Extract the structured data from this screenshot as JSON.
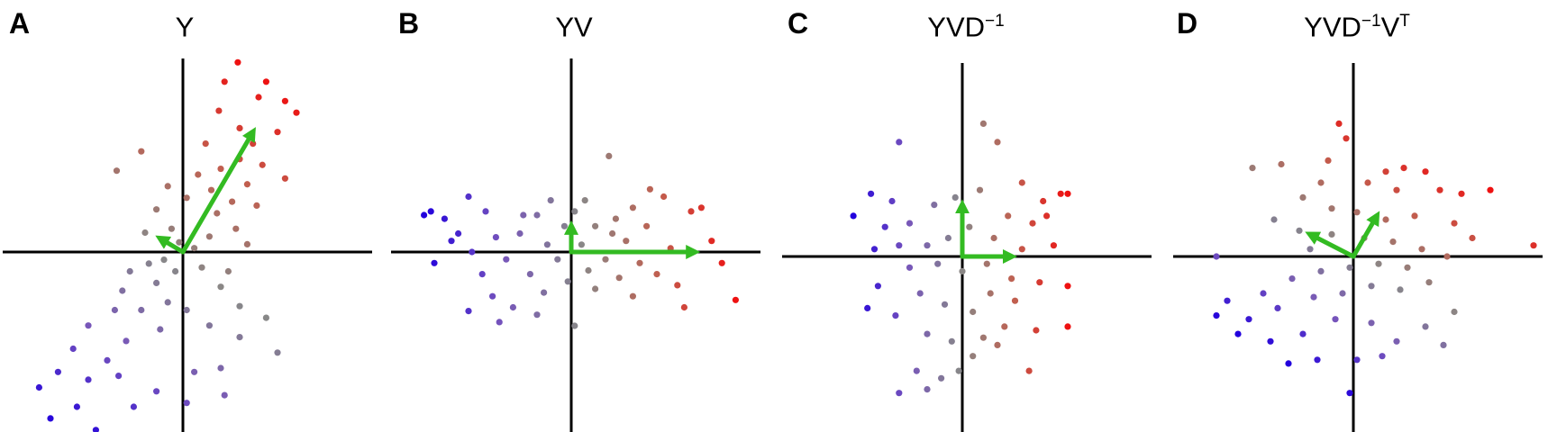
{
  "figure": {
    "panels": [
      {
        "letter": "A",
        "title": {
          "base": "Y",
          "sup1": "",
          "mid": "",
          "sup2": ""
        }
      },
      {
        "letter": "B",
        "title": {
          "base": "YV",
          "sup1": "",
          "mid": "",
          "sup2": ""
        }
      },
      {
        "letter": "C",
        "title": {
          "base": "YVD",
          "sup1": "−1",
          "mid": "",
          "sup2": ""
        }
      },
      {
        "letter": "D",
        "title": {
          "base": "YVD",
          "sup1": "−1",
          "mid": "V",
          "sup2": "T"
        }
      }
    ],
    "colors": {
      "axis": "#000000",
      "arrow": "#33bb22",
      "point_gradient": [
        "#2200dd",
        "#7755bb",
        "#888888",
        "#c06050",
        "#ee1111"
      ]
    }
  },
  "chart_data": [
    {
      "type": "scatter",
      "panel": "A",
      "title": "Y",
      "xlim": [
        -1,
        1
      ],
      "ylim": [
        -1,
        1
      ],
      "vectors": [
        {
          "dx": 0.37,
          "dy": 0.62
        },
        {
          "dx": -0.12,
          "dy": 0.07
        }
      ],
      "points": [
        {
          "x": 0.29,
          "y": 0.98
        },
        {
          "x": 0.22,
          "y": 0.88
        },
        {
          "x": 0.44,
          "y": 0.88
        },
        {
          "x": 0.4,
          "y": 0.8
        },
        {
          "x": 0.6,
          "y": 0.72
        },
        {
          "x": 0.54,
          "y": 0.78
        },
        {
          "x": 0.19,
          "y": 0.73
        },
        {
          "x": 0.3,
          "y": 0.64
        },
        {
          "x": 0.5,
          "y": 0.62
        },
        {
          "x": 0.37,
          "y": 0.56
        },
        {
          "x": 0.12,
          "y": 0.56
        },
        {
          "x": 0.42,
          "y": 0.45
        },
        {
          "x": 0.3,
          "y": 0.48
        },
        {
          "x": 0.2,
          "y": 0.43
        },
        {
          "x": 0.54,
          "y": 0.38
        },
        {
          "x": 0.34,
          "y": 0.35
        },
        {
          "x": 0.15,
          "y": 0.32
        },
        {
          "x": 0.26,
          "y": 0.26
        },
        {
          "x": 0.39,
          "y": 0.24
        },
        {
          "x": 0.08,
          "y": 0.4
        },
        {
          "x": 0.18,
          "y": 0.2
        },
        {
          "x": 0.28,
          "y": 0.12
        },
        {
          "x": 0.14,
          "y": 0.08
        },
        {
          "x": 0.34,
          "y": 0.04
        },
        {
          "x": 0.02,
          "y": 0.28
        },
        {
          "x": -0.22,
          "y": 0.52
        },
        {
          "x": -0.35,
          "y": 0.42
        },
        {
          "x": -0.08,
          "y": 0.34
        },
        {
          "x": -0.14,
          "y": 0.22
        },
        {
          "x": -0.2,
          "y": 0.1
        },
        {
          "x": -0.06,
          "y": 0.12
        },
        {
          "x": -0.02,
          "y": 0.05
        },
        {
          "x": 0.06,
          "y": 0.02
        },
        {
          "x": -0.1,
          "y": -0.04
        },
        {
          "x": -0.18,
          "y": -0.06
        },
        {
          "x": -0.28,
          "y": -0.1
        },
        {
          "x": -0.04,
          "y": -0.1
        },
        {
          "x": 0.1,
          "y": -0.08
        },
        {
          "x": 0.24,
          "y": -0.1
        },
        {
          "x": 0.2,
          "y": -0.18
        },
        {
          "x": -0.14,
          "y": -0.16
        },
        {
          "x": -0.32,
          "y": -0.2
        },
        {
          "x": -0.08,
          "y": -0.26
        },
        {
          "x": 0.02,
          "y": -0.3
        },
        {
          "x": -0.22,
          "y": -0.3
        },
        {
          "x": -0.36,
          "y": -0.3
        },
        {
          "x": 0.3,
          "y": -0.28
        },
        {
          "x": 0.44,
          "y": -0.34
        },
        {
          "x": 0.3,
          "y": -0.44
        },
        {
          "x": 0.14,
          "y": -0.38
        },
        {
          "x": -0.12,
          "y": -0.4
        },
        {
          "x": -0.3,
          "y": -0.46
        },
        {
          "x": -0.5,
          "y": -0.38
        },
        {
          "x": -0.4,
          "y": -0.56
        },
        {
          "x": -0.58,
          "y": -0.5
        },
        {
          "x": -0.66,
          "y": -0.62
        },
        {
          "x": -0.5,
          "y": -0.66
        },
        {
          "x": -0.76,
          "y": -0.7
        },
        {
          "x": -0.56,
          "y": -0.8
        },
        {
          "x": -0.34,
          "y": -0.64
        },
        {
          "x": -0.26,
          "y": -0.8
        },
        {
          "x": -0.46,
          "y": -0.92
        },
        {
          "x": -0.6,
          "y": -0.96
        },
        {
          "x": -0.7,
          "y": -0.86
        },
        {
          "x": -0.14,
          "y": -0.72
        },
        {
          "x": 0.06,
          "y": -0.62
        },
        {
          "x": 0.2,
          "y": -0.6
        },
        {
          "x": 0.02,
          "y": -0.78
        },
        {
          "x": 0.22,
          "y": -0.74
        },
        {
          "x": 0.5,
          "y": -0.52
        }
      ]
    },
    {
      "type": "scatter",
      "panel": "B",
      "title": "YV",
      "xlim": [
        -1,
        1
      ],
      "ylim": [
        -1,
        1
      ],
      "vectors": [
        {
          "dx": 0.72,
          "dy": 0.0
        },
        {
          "dx": 0.0,
          "dy": 0.14
        }
      ],
      "points": [
        {
          "x": -0.82,
          "y": 0.22
        },
        {
          "x": -0.74,
          "y": 0.18
        },
        {
          "x": -0.6,
          "y": 0.3
        },
        {
          "x": -0.66,
          "y": 0.1
        },
        {
          "x": -0.8,
          "y": -0.06
        },
        {
          "x": -0.5,
          "y": 0.22
        },
        {
          "x": -0.58,
          "y": 0.0
        },
        {
          "x": -0.44,
          "y": 0.08
        },
        {
          "x": -0.38,
          "y": -0.04
        },
        {
          "x": -0.46,
          "y": -0.24
        },
        {
          "x": -0.3,
          "y": 0.1
        },
        {
          "x": -0.24,
          "y": -0.12
        },
        {
          "x": -0.34,
          "y": -0.3
        },
        {
          "x": -0.2,
          "y": 0.2
        },
        {
          "x": -0.14,
          "y": 0.04
        },
        {
          "x": -0.16,
          "y": -0.22
        },
        {
          "x": -0.08,
          "y": -0.04
        },
        {
          "x": -0.04,
          "y": 0.14
        },
        {
          "x": -0.02,
          "y": -0.16
        },
        {
          "x": 0.02,
          "y": 0.22
        },
        {
          "x": 0.06,
          "y": 0.04
        },
        {
          "x": 0.1,
          "y": -0.1
        },
        {
          "x": 0.14,
          "y": 0.14
        },
        {
          "x": 0.2,
          "y": -0.04
        },
        {
          "x": 0.24,
          "y": 0.1
        },
        {
          "x": 0.28,
          "y": -0.14
        },
        {
          "x": 0.32,
          "y": 0.06
        },
        {
          "x": 0.22,
          "y": 0.52
        },
        {
          "x": 0.36,
          "y": 0.24
        },
        {
          "x": 0.4,
          "y": -0.06
        },
        {
          "x": 0.44,
          "y": 0.14
        },
        {
          "x": 0.5,
          "y": -0.12
        },
        {
          "x": 0.54,
          "y": 0.3
        },
        {
          "x": 0.58,
          "y": 0.02
        },
        {
          "x": 0.62,
          "y": -0.18
        },
        {
          "x": 0.7,
          "y": 0.22
        },
        {
          "x": 0.76,
          "y": 0.24
        },
        {
          "x": 0.82,
          "y": 0.06
        },
        {
          "x": 0.88,
          "y": -0.06
        },
        {
          "x": 0.96,
          "y": -0.26
        },
        {
          "x": 0.46,
          "y": 0.34
        },
        {
          "x": 0.36,
          "y": -0.24
        },
        {
          "x": 0.14,
          "y": -0.2
        },
        {
          "x": 0.02,
          "y": -0.4
        },
        {
          "x": -0.12,
          "y": 0.28
        },
        {
          "x": -0.28,
          "y": 0.2
        },
        {
          "x": -0.52,
          "y": -0.12
        },
        {
          "x": -0.7,
          "y": 0.06
        },
        {
          "x": -0.86,
          "y": 0.2
        },
        {
          "x": -0.6,
          "y": -0.32
        },
        {
          "x": -0.42,
          "y": -0.38
        },
        {
          "x": -0.2,
          "y": -0.34
        },
        {
          "x": 0.08,
          "y": 0.28
        },
        {
          "x": 0.26,
          "y": 0.18
        },
        {
          "x": 0.66,
          "y": -0.3
        }
      ]
    },
    {
      "type": "scatter",
      "panel": "C",
      "title": "YVD^-1",
      "xlim": [
        -1,
        1
      ],
      "ylim": [
        -1,
        1
      ],
      "vectors": [
        {
          "dx": 0.28,
          "dy": 0.0
        },
        {
          "dx": 0.0,
          "dy": 0.28
        }
      ],
      "points": [
        {
          "x": 0.12,
          "y": 0.72
        },
        {
          "x": 0.2,
          "y": 0.62
        },
        {
          "x": -0.36,
          "y": 0.62
        },
        {
          "x": 0.34,
          "y": 0.4
        },
        {
          "x": 0.56,
          "y": 0.34
        },
        {
          "x": 0.46,
          "y": 0.3
        },
        {
          "x": 0.6,
          "y": 0.34
        },
        {
          "x": -0.4,
          "y": 0.3
        },
        {
          "x": -0.62,
          "y": 0.22
        },
        {
          "x": -0.52,
          "y": 0.34
        },
        {
          "x": -0.3,
          "y": 0.18
        },
        {
          "x": -0.16,
          "y": 0.28
        },
        {
          "x": -0.04,
          "y": 0.32
        },
        {
          "x": 0.1,
          "y": 0.36
        },
        {
          "x": 0.26,
          "y": 0.22
        },
        {
          "x": 0.4,
          "y": 0.18
        },
        {
          "x": 0.52,
          "y": 0.06
        },
        {
          "x": 0.34,
          "y": 0.04
        },
        {
          "x": 0.18,
          "y": 0.1
        },
        {
          "x": 0.04,
          "y": 0.16
        },
        {
          "x": -0.08,
          "y": 0.1
        },
        {
          "x": -0.2,
          "y": 0.06
        },
        {
          "x": -0.36,
          "y": 0.06
        },
        {
          "x": -0.5,
          "y": 0.04
        },
        {
          "x": -0.48,
          "y": -0.16
        },
        {
          "x": -0.3,
          "y": -0.06
        },
        {
          "x": -0.14,
          "y": -0.04
        },
        {
          "x": 0.0,
          "y": -0.08
        },
        {
          "x": 0.14,
          "y": -0.04
        },
        {
          "x": 0.28,
          "y": -0.12
        },
        {
          "x": 0.44,
          "y": -0.14
        },
        {
          "x": 0.6,
          "y": -0.16
        },
        {
          "x": 0.3,
          "y": -0.24
        },
        {
          "x": 0.16,
          "y": -0.2
        },
        {
          "x": 0.06,
          "y": -0.3
        },
        {
          "x": -0.1,
          "y": -0.26
        },
        {
          "x": -0.24,
          "y": -0.2
        },
        {
          "x": -0.38,
          "y": -0.32
        },
        {
          "x": -0.2,
          "y": -0.42
        },
        {
          "x": -0.06,
          "y": -0.46
        },
        {
          "x": 0.12,
          "y": -0.44
        },
        {
          "x": 0.24,
          "y": -0.38
        },
        {
          "x": 0.42,
          "y": -0.4
        },
        {
          "x": 0.6,
          "y": -0.38
        },
        {
          "x": 0.38,
          "y": -0.62
        },
        {
          "x": -0.26,
          "y": -0.62
        },
        {
          "x": -0.12,
          "y": -0.66
        },
        {
          "x": -0.02,
          "y": -0.62
        },
        {
          "x": 0.06,
          "y": -0.54
        },
        {
          "x": -0.36,
          "y": -0.74
        },
        {
          "x": -0.2,
          "y": -0.72
        },
        {
          "x": 0.2,
          "y": -0.48
        },
        {
          "x": -0.54,
          "y": -0.28
        },
        {
          "x": 0.48,
          "y": 0.22
        },
        {
          "x": -0.44,
          "y": 0.16
        }
      ]
    },
    {
      "type": "scatter",
      "panel": "D",
      "title": "YVD^-1V^T",
      "xlim": [
        -1,
        1
      ],
      "ylim": [
        -1,
        1
      ],
      "vectors": [
        {
          "dx": 0.13,
          "dy": 0.22
        },
        {
          "dx": -0.24,
          "dy": 0.12
        }
      ],
      "points": [
        {
          "x": -0.56,
          "y": 0.48
        },
        {
          "x": -0.4,
          "y": 0.5
        },
        {
          "x": -0.08,
          "y": 0.72
        },
        {
          "x": -0.04,
          "y": 0.64
        },
        {
          "x": -0.14,
          "y": 0.52
        },
        {
          "x": 0.18,
          "y": 0.46
        },
        {
          "x": 0.28,
          "y": 0.48
        },
        {
          "x": 0.4,
          "y": 0.46
        },
        {
          "x": 0.48,
          "y": 0.36
        },
        {
          "x": 0.24,
          "y": 0.36
        },
        {
          "x": 0.08,
          "y": 0.4
        },
        {
          "x": -0.18,
          "y": 0.4
        },
        {
          "x": -0.28,
          "y": 0.32
        },
        {
          "x": 0.6,
          "y": 0.34
        },
        {
          "x": 0.76,
          "y": 0.36
        },
        {
          "x": 1.0,
          "y": 0.06
        },
        {
          "x": 0.56,
          "y": 0.18
        },
        {
          "x": 0.34,
          "y": 0.22
        },
        {
          "x": 0.18,
          "y": 0.2
        },
        {
          "x": 0.02,
          "y": 0.24
        },
        {
          "x": -0.12,
          "y": 0.26
        },
        {
          "x": -0.3,
          "y": 0.14
        },
        {
          "x": -0.24,
          "y": 0.04
        },
        {
          "x": -0.12,
          "y": 0.12
        },
        {
          "x": 0.06,
          "y": 0.1
        },
        {
          "x": 0.22,
          "y": 0.08
        },
        {
          "x": 0.38,
          "y": 0.04
        },
        {
          "x": 0.52,
          "y": 0.0
        },
        {
          "x": 0.3,
          "y": -0.06
        },
        {
          "x": 0.14,
          "y": -0.04
        },
        {
          "x": -0.02,
          "y": -0.06
        },
        {
          "x": -0.18,
          "y": -0.08
        },
        {
          "x": -0.34,
          "y": -0.12
        },
        {
          "x": -0.5,
          "y": -0.2
        },
        {
          "x": -0.7,
          "y": -0.24
        },
        {
          "x": -0.58,
          "y": -0.34
        },
        {
          "x": -0.42,
          "y": -0.28
        },
        {
          "x": -0.22,
          "y": -0.22
        },
        {
          "x": -0.06,
          "y": -0.2
        },
        {
          "x": 0.1,
          "y": -0.16
        },
        {
          "x": 0.26,
          "y": -0.18
        },
        {
          "x": 0.42,
          "y": -0.14
        },
        {
          "x": 0.56,
          "y": -0.3
        },
        {
          "x": 0.4,
          "y": -0.38
        },
        {
          "x": 0.24,
          "y": -0.46
        },
        {
          "x": 0.1,
          "y": -0.36
        },
        {
          "x": -0.1,
          "y": -0.34
        },
        {
          "x": -0.28,
          "y": -0.42
        },
        {
          "x": -0.46,
          "y": -0.46
        },
        {
          "x": -0.64,
          "y": -0.42
        },
        {
          "x": -0.76,
          "y": -0.32
        },
        {
          "x": -0.36,
          "y": -0.58
        },
        {
          "x": -0.2,
          "y": -0.56
        },
        {
          "x": 0.02,
          "y": -0.56
        },
        {
          "x": 0.16,
          "y": -0.54
        },
        {
          "x": 0.5,
          "y": -0.48
        },
        {
          "x": -0.02,
          "y": -0.74
        },
        {
          "x": -0.76,
          "y": 0.0
        },
        {
          "x": 0.66,
          "y": 0.1
        },
        {
          "x": -0.44,
          "y": 0.2
        }
      ]
    }
  ]
}
